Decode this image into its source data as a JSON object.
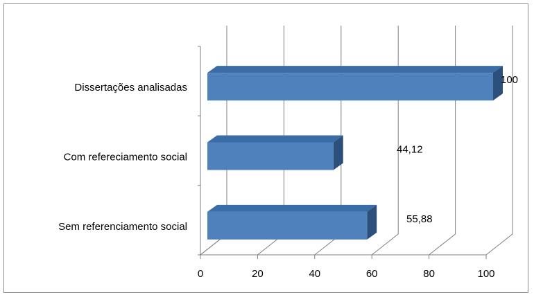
{
  "chart_data": {
    "type": "bar",
    "orientation": "horizontal",
    "style": "3d",
    "categories": [
      "Dissertações analisadas",
      "Com refereciamento social",
      "Sem referenciamento social"
    ],
    "values": [
      100,
      44.12,
      55.88
    ],
    "data_labels": [
      "100",
      "44,12",
      "55,88"
    ],
    "xlim": [
      0,
      100
    ],
    "x_ticks": [
      "0",
      "20",
      "40",
      "60",
      "80",
      "100"
    ],
    "grid": true,
    "legend": "none",
    "bar_color": "#4f81bd",
    "bar_top_color": "#3a6ca6",
    "bar_side_color": "#2c4f7c"
  }
}
